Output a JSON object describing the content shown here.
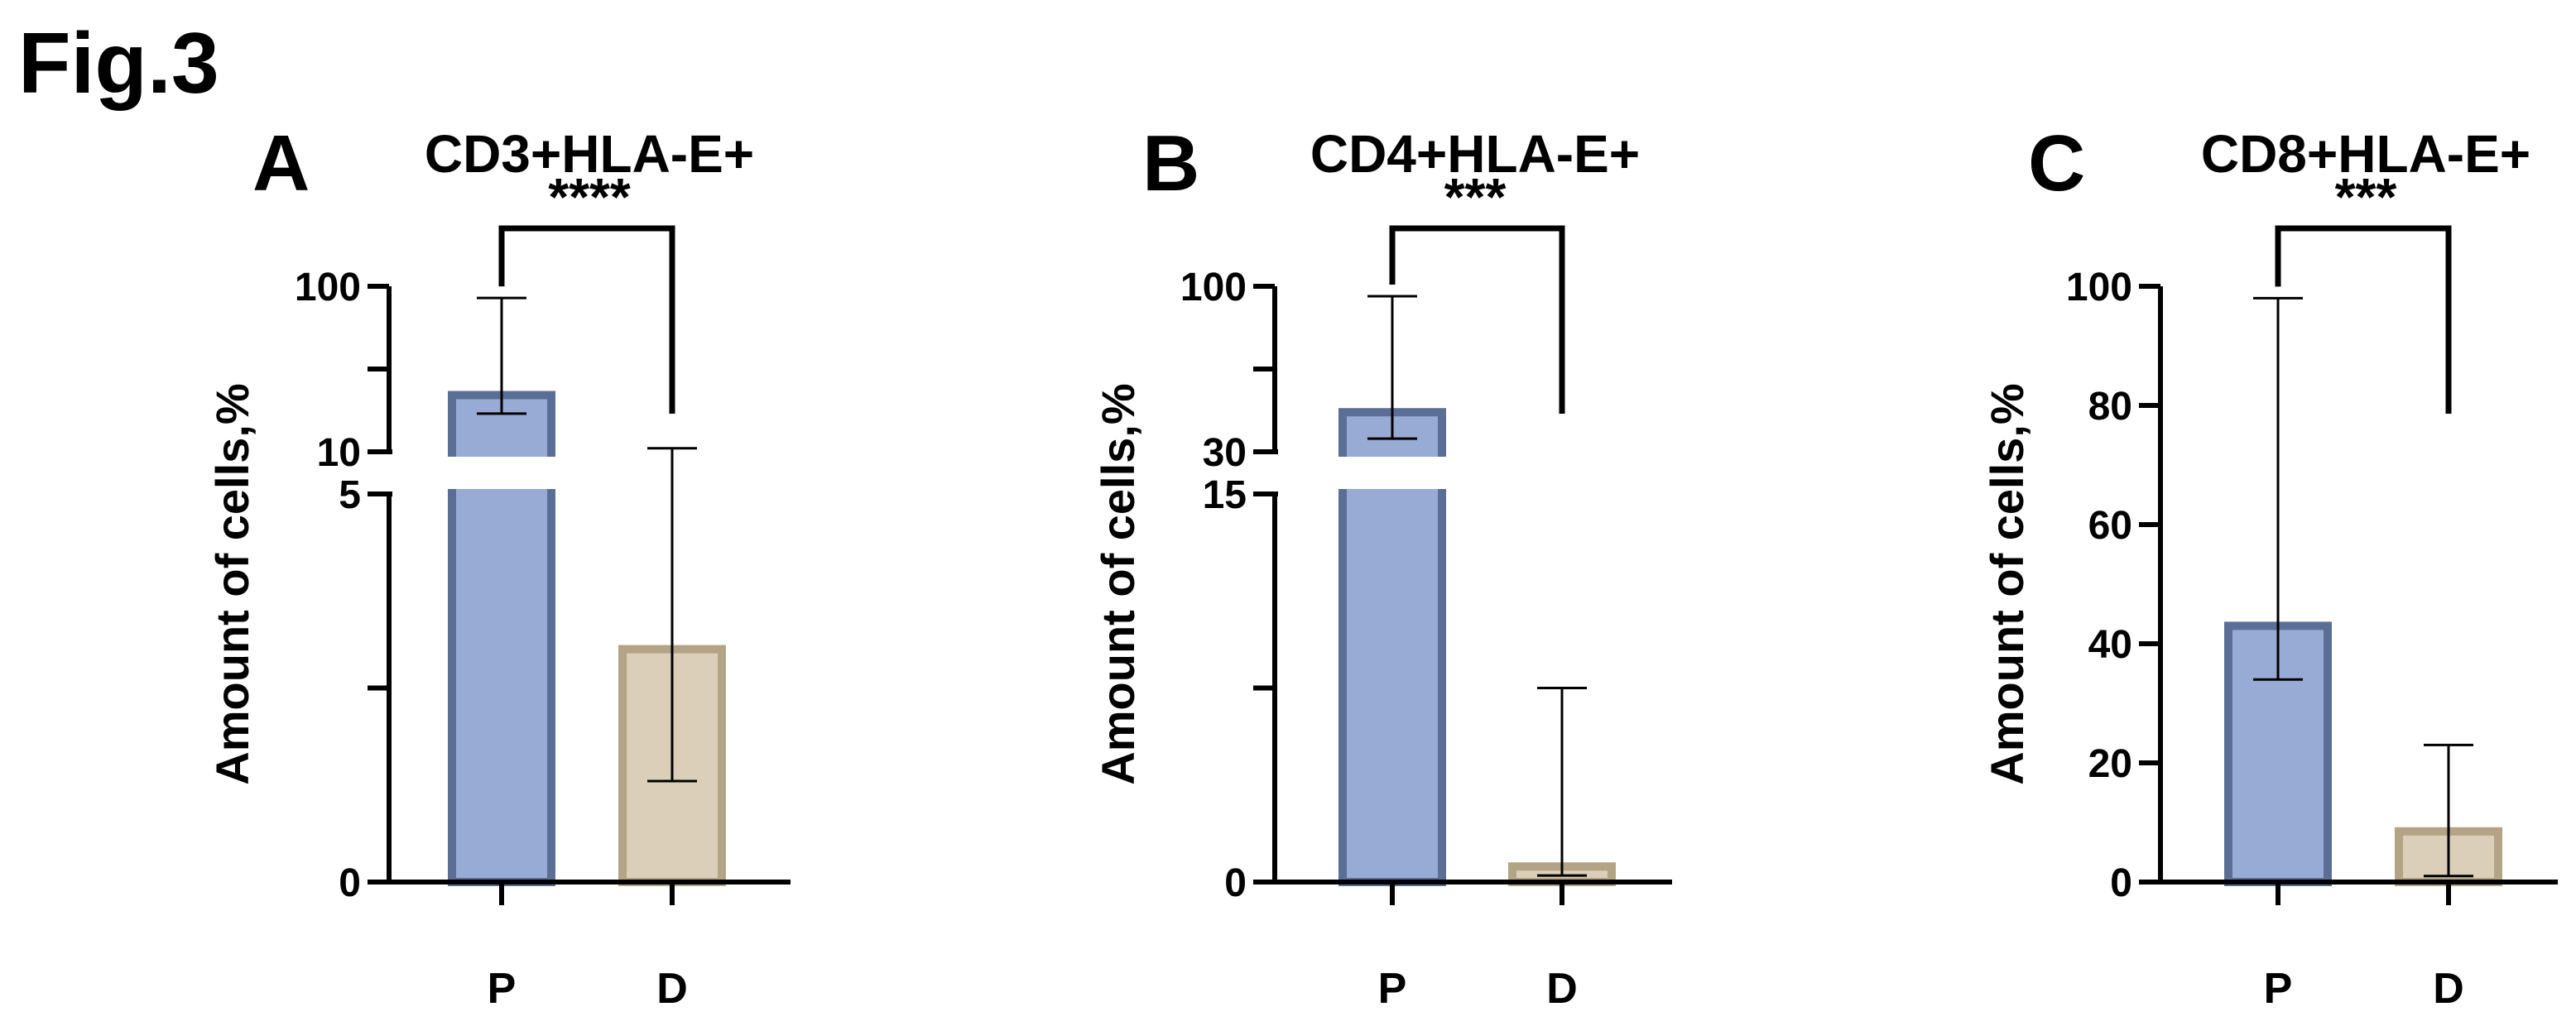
{
  "figure_label": "Fig.3",
  "colors": {
    "P_fill": "#97abd4",
    "P_edge": "#5b6f96",
    "D_fill": "#dccfba",
    "D_edge": "#b3a486",
    "axis": "#000000"
  },
  "chart_data": [
    {
      "type": "bar",
      "panel": "A",
      "title": "CD3+HLA-E+",
      "ylabel": "Amount of cells,%",
      "xlabel": "",
      "categories": [
        "P",
        "D"
      ],
      "y_axis_break": true,
      "y_segments": [
        {
          "range": [
            0,
            5
          ],
          "ticks": [
            "0",
            "5"
          ]
        },
        {
          "range": [
            10,
            100
          ],
          "ticks": [
            "10",
            "100"
          ]
        }
      ],
      "values": [
        22,
        3
      ],
      "error_low": [
        17,
        1.3
      ],
      "error_high": [
        85,
        10.5
      ],
      "significance": "****"
    },
    {
      "type": "bar",
      "panel": "B",
      "title": "CD4+HLA-E+",
      "ylabel": "Amount of cells,%",
      "xlabel": "",
      "categories": [
        "P",
        "D"
      ],
      "y_axis_break": true,
      "y_segments": [
        {
          "range": [
            0,
            15
          ],
          "ticks": [
            "0",
            "15"
          ]
        },
        {
          "range": [
            30,
            100
          ],
          "ticks": [
            "30",
            "100"
          ]
        }
      ],
      "values": [
        40,
        0.6
      ],
      "error_low": [
        33,
        0.25
      ],
      "error_high": [
        93,
        7.5
      ],
      "significance": "***"
    },
    {
      "type": "bar",
      "panel": "C",
      "title": "CD8+HLA-E+",
      "ylabel": "Amount of cells,%",
      "xlabel": "",
      "categories": [
        "P",
        "D"
      ],
      "y_axis_break": false,
      "ylim": [
        0,
        100
      ],
      "yticks": [
        "0",
        "20",
        "40",
        "60",
        "80",
        "100"
      ],
      "values": [
        43,
        8.5
      ],
      "error_low": [
        34,
        1
      ],
      "error_high": [
        98,
        23
      ],
      "significance": "***"
    }
  ]
}
